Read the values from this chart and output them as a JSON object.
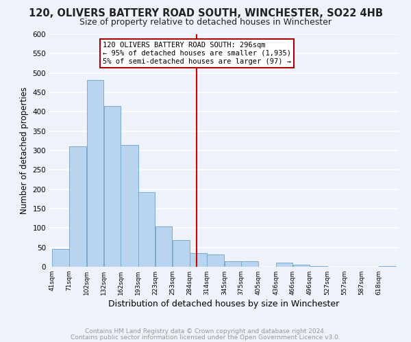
{
  "title": "120, OLIVERS BATTERY ROAD SOUTH, WINCHESTER, SO22 4HB",
  "subtitle": "Size of property relative to detached houses in Winchester",
  "xlabel": "Distribution of detached houses by size in Winchester",
  "ylabel": "Number of detached properties",
  "bar_color": "#b8d4ee",
  "bar_edge_color": "#7aaace",
  "vline_x": 296,
  "vline_color": "#cc0000",
  "annotation_lines": [
    "120 OLIVERS BATTERY ROAD SOUTH: 296sqm",
    "← 95% of detached houses are smaller (1,935)",
    "5% of semi-detached houses are larger (97) →"
  ],
  "bin_edges": [
    41,
    71,
    102,
    132,
    162,
    193,
    223,
    253,
    284,
    314,
    345,
    375,
    405,
    436,
    466,
    496,
    527,
    557,
    587,
    618,
    648
  ],
  "bin_heights": [
    46,
    311,
    481,
    415,
    315,
    193,
    105,
    69,
    36,
    31,
    14,
    14,
    0,
    11,
    5,
    2,
    0,
    0,
    0,
    2
  ],
  "ylim": [
    0,
    600
  ],
  "yticks": [
    0,
    50,
    100,
    150,
    200,
    250,
    300,
    350,
    400,
    450,
    500,
    550,
    600
  ],
  "footer_lines": [
    "Contains HM Land Registry data © Crown copyright and database right 2024.",
    "Contains public sector information licensed under the Open Government Licence v3.0."
  ],
  "background_color": "#eef2fb",
  "grid_color": "#ffffff",
  "title_fontsize": 10.5,
  "subtitle_fontsize": 9,
  "annotation_box_color": "#ffffff",
  "annotation_box_edge": "#aa0000",
  "footer_color": "#999999",
  "footer_fontsize": 6.5
}
